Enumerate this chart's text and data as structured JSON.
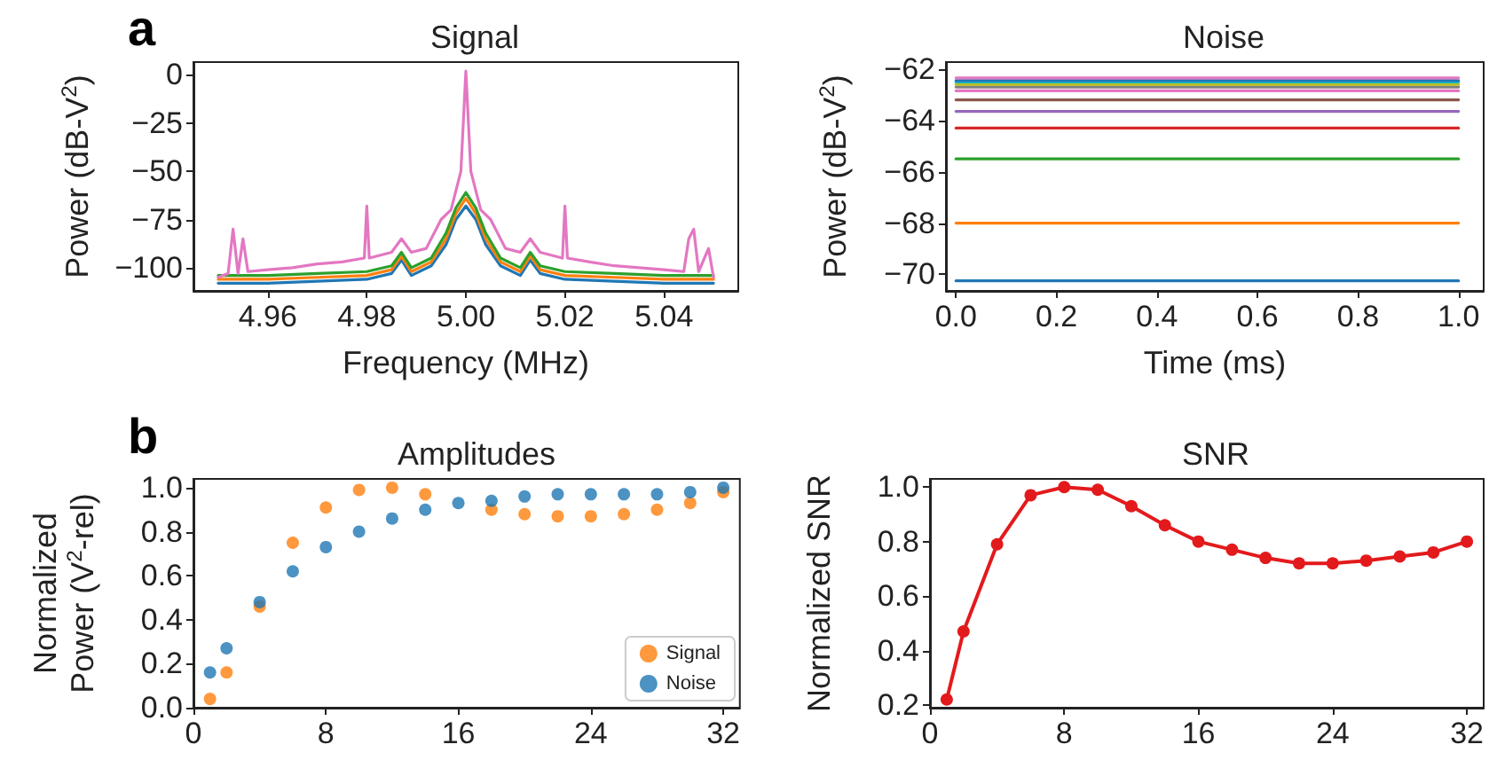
{
  "chart_data": [
    {
      "type": "line",
      "title": "Signal",
      "xlabel": "Frequency (MHz)",
      "ylabel": "Power (dB-V$^{2}$)",
      "annotations": [
        "a"
      ],
      "xlim": [
        4.945,
        5.055
      ],
      "ylim": [
        -112,
        6.6
      ],
      "xticks": [
        4.96,
        4.98,
        {
          "value": 5.0,
          "label": "5.00"
        },
        5.02,
        5.04
      ],
      "yticks": [
        0,
        {
          "value": -25,
          "label": "−25"
        },
        {
          "value": -50,
          "label": "−50"
        },
        {
          "value": -75,
          "label": "−75"
        },
        {
          "value": -100,
          "label": "−100"
        }
      ],
      "series": [
        {
          "color": "#1f77b4",
          "x": [
            4.95,
            4.96,
            4.97,
            4.98,
            4.985,
            4.987,
            4.989,
            4.993,
            4.996,
            4.998,
            5.0,
            5.002,
            5.004,
            5.007,
            5.011,
            5.013,
            5.015,
            5.02,
            5.03,
            5.04,
            5.05
          ],
          "values": [
            -108,
            -108,
            -107,
            -106,
            -103,
            -96,
            -104,
            -99,
            -88,
            -75,
            -68,
            -75,
            -88,
            -99,
            -104,
            -96,
            -103,
            -106,
            -107,
            -108,
            -108
          ]
        },
        {
          "color": "#ff7f0e",
          "x": [
            4.95,
            4.96,
            4.97,
            4.98,
            4.985,
            4.987,
            4.989,
            4.993,
            4.996,
            4.998,
            5.0,
            5.002,
            5.004,
            5.007,
            5.011,
            5.013,
            5.015,
            5.02,
            5.03,
            5.04,
            5.05
          ],
          "values": [
            -106,
            -106,
            -105,
            -104,
            -101,
            -94,
            -102,
            -97,
            -85,
            -72,
            -64,
            -72,
            -85,
            -97,
            -102,
            -94,
            -101,
            -104,
            -105,
            -106,
            -106
          ]
        },
        {
          "color": "#2ca02c",
          "x": [
            4.95,
            4.96,
            4.97,
            4.98,
            4.985,
            4.987,
            4.989,
            4.993,
            4.996,
            4.998,
            5.0,
            5.002,
            5.004,
            5.007,
            5.011,
            5.013,
            5.015,
            5.02,
            5.03,
            5.04,
            5.05
          ],
          "values": [
            -104,
            -104,
            -103,
            -102,
            -99,
            -92,
            -100,
            -95,
            -82,
            -69,
            -61,
            -69,
            -82,
            -95,
            -100,
            -92,
            -99,
            -102,
            -103,
            -104,
            -104
          ]
        },
        {
          "color": "#e377c2",
          "x": [
            4.95,
            4.952,
            4.953,
            4.954,
            4.955,
            4.956,
            4.96,
            4.965,
            4.97,
            4.975,
            4.9795,
            4.98,
            4.9805,
            4.985,
            4.987,
            4.989,
            4.992,
            4.995,
            4.997,
            4.999,
            5.0,
            5.001,
            5.003,
            5.005,
            5.008,
            5.011,
            5.013,
            5.015,
            5.0195,
            5.02,
            5.0205,
            5.025,
            5.03,
            5.035,
            5.04,
            5.044,
            5.045,
            5.046,
            5.047,
            5.049,
            5.05
          ],
          "values": [
            -105,
            -103,
            -80,
            -103,
            -85,
            -102,
            -101,
            -100,
            -98,
            -97,
            -95,
            -68,
            -95,
            -92,
            -85,
            -92,
            -90,
            -75,
            -70,
            -50,
            2,
            -50,
            -70,
            -75,
            -90,
            -92,
            -85,
            -92,
            -95,
            -68,
            -95,
            -97,
            -99,
            -100,
            -101,
            -102,
            -85,
            -80,
            -102,
            -90,
            -105
          ]
        }
      ]
    },
    {
      "type": "line",
      "title": "Noise",
      "xlabel": "Time (ms)",
      "ylabel": "Power (dB-V$^{2}$)",
      "xlim": [
        -0.02,
        1.05
      ],
      "ylim": [
        -70.64,
        -61.73
      ],
      "xticks": [
        {
          "value": 0,
          "label": "0.0"
        },
        0.2,
        0.4,
        0.6,
        0.8,
        {
          "value": 1,
          "label": "1.0"
        }
      ],
      "yticks": [
        {
          "value": -62,
          "label": "−62"
        },
        {
          "value": -64,
          "label": "−64"
        },
        {
          "value": -66,
          "label": "−66"
        },
        {
          "value": -68,
          "label": "−68"
        },
        {
          "value": -70,
          "label": "−70"
        }
      ],
      "x": [
        0,
        1
      ],
      "series": [
        {
          "color": "#1f77b4",
          "values": [
            -70.25,
            -70.25
          ]
        },
        {
          "color": "#ff7f0e",
          "values": [
            -68.0,
            -68.0
          ]
        },
        {
          "color": "#2ca02c",
          "values": [
            -65.5,
            -65.5
          ]
        },
        {
          "color": "#d62728",
          "values": [
            -64.3,
            -64.3
          ]
        },
        {
          "color": "#9467bd",
          "values": [
            -63.65,
            -63.65
          ]
        },
        {
          "color": "#8c564b",
          "values": [
            -63.2,
            -63.2
          ]
        },
        {
          "color": "#e377c2",
          "values": [
            -62.85,
            -62.85
          ]
        },
        {
          "color": "#7f7f7f",
          "values": [
            -62.7,
            -62.7
          ]
        },
        {
          "color": "#bcbd22",
          "values": [
            -62.6,
            -62.6
          ]
        },
        {
          "color": "#17becf",
          "values": [
            -62.5,
            -62.5
          ]
        },
        {
          "color": "#1f77b4",
          "values": [
            -62.45,
            -62.45
          ]
        },
        {
          "color": "#e377c2",
          "values": [
            -62.35,
            -62.35
          ]
        }
      ]
    },
    {
      "type": "scatter",
      "title": "Amplitudes",
      "ylabel": "Normalized\nPower (V$^{2}$-rel)",
      "annotations": [
        "b"
      ],
      "marker": "circle",
      "legend": "bottom right",
      "xlim": [
        0,
        33
      ],
      "ylim": [
        0,
        1.04
      ],
      "xticks": [
        0,
        8,
        16,
        24,
        32
      ],
      "yticks": [
        {
          "value": 0,
          "label": "0.0"
        },
        0.2,
        0.4,
        0.6,
        0.8,
        {
          "value": 1,
          "label": "1.0"
        }
      ],
      "x": [
        1,
        2,
        4,
        6,
        8,
        10,
        12,
        14,
        16,
        18,
        20,
        22,
        24,
        26,
        28,
        30,
        32
      ],
      "series": [
        {
          "name": "Signal",
          "color": "#ff7f0e",
          "values": [
            0.04,
            0.16,
            0.46,
            0.75,
            0.91,
            0.99,
            1.0,
            0.97,
            null,
            0.9,
            0.88,
            0.87,
            0.87,
            0.88,
            0.9,
            0.93,
            0.98
          ]
        },
        {
          "name": "Noise",
          "color": "#1f77b4",
          "values": [
            0.16,
            0.27,
            0.48,
            0.62,
            0.73,
            0.8,
            0.86,
            0.9,
            0.93,
            0.94,
            0.96,
            0.97,
            0.97,
            0.97,
            0.97,
            0.98,
            1.0
          ]
        }
      ]
    },
    {
      "type": "line",
      "title": "SNR",
      "ylabel": "Normalized SNR",
      "marker": "circle",
      "xlim": [
        0,
        33
      ],
      "ylim": [
        0.19,
        1.03
      ],
      "xticks": [
        0,
        8,
        16,
        24,
        32
      ],
      "yticks": [
        0.2,
        0.4,
        0.6,
        0.8,
        {
          "value": 1,
          "label": "1.0"
        }
      ],
      "x": [
        1,
        2,
        4,
        6,
        8,
        10,
        12,
        14,
        16,
        18,
        20,
        22,
        24,
        26,
        28,
        30,
        32
      ],
      "series": [
        {
          "color": "#e31a1c",
          "values": [
            0.22,
            0.47,
            0.79,
            0.97,
            1.0,
            0.99,
            0.93,
            0.86,
            0.8,
            0.77,
            0.74,
            0.72,
            0.72,
            0.73,
            0.745,
            0.76,
            0.8
          ]
        }
      ]
    }
  ]
}
